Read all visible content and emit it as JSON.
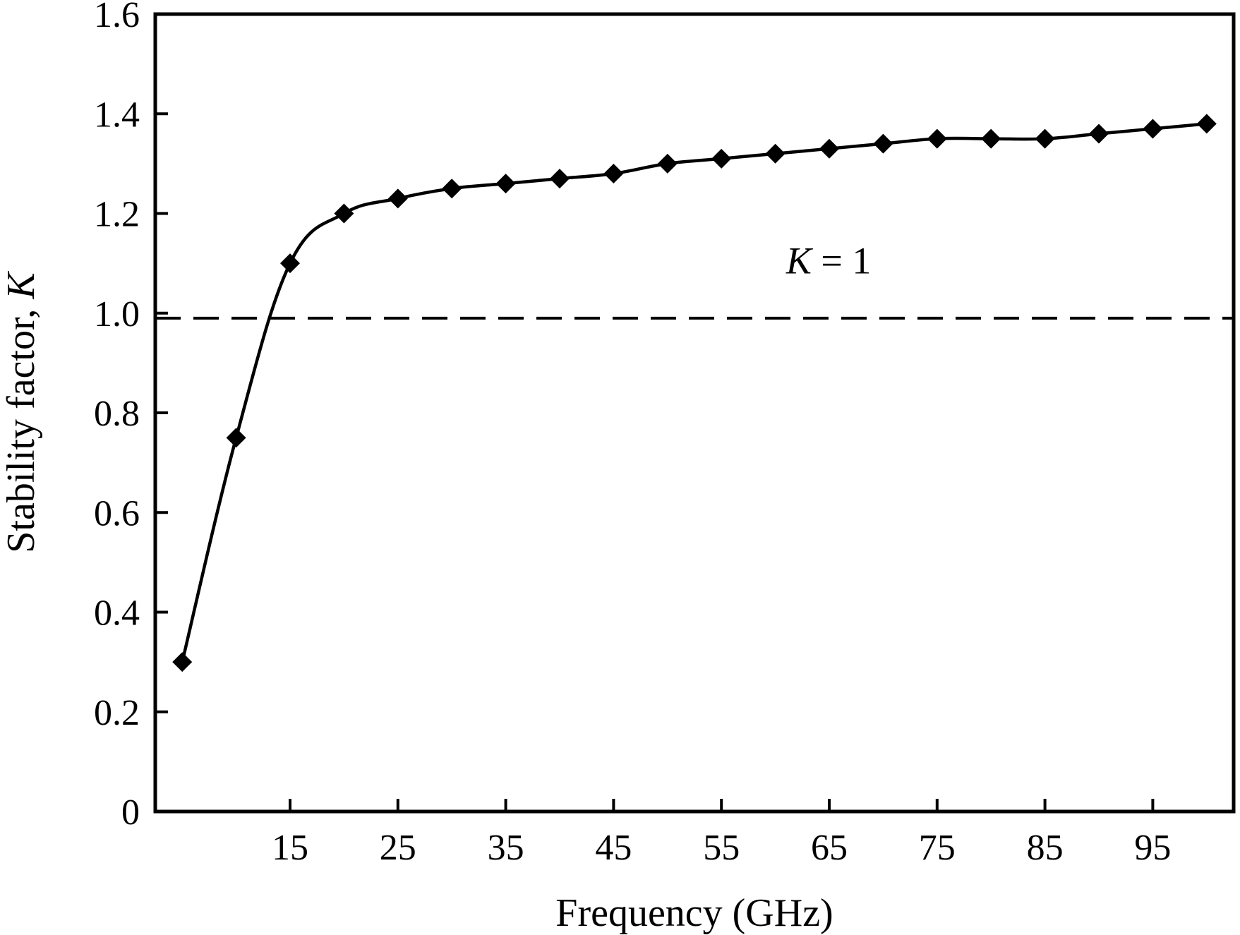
{
  "chart_data": {
    "type": "line",
    "title": "",
    "xlabel": "Frequency (GHz)",
    "ylabel_text": "Stability factor, ",
    "ylabel_var": "K",
    "xlim": [
      2.5,
      102.5
    ],
    "ylim": [
      0,
      1.6
    ],
    "x_ticks": [
      15,
      25,
      35,
      45,
      55,
      65,
      75,
      85,
      95
    ],
    "y_ticks": [
      0,
      0.2,
      0.4,
      0.6,
      0.8,
      1.0,
      1.2,
      1.4,
      1.6
    ],
    "y_tick_labels": [
      "0",
      "0.2",
      "0.4",
      "0.6",
      "0.8",
      "1.0",
      "1.2",
      "1.4",
      "1.6"
    ],
    "grid": false,
    "legend": "none",
    "series": [
      {
        "marker": "diamond",
        "color": "#000000",
        "x": [
          5,
          10,
          15,
          20,
          25,
          30,
          35,
          40,
          45,
          50,
          55,
          60,
          65,
          70,
          75,
          80,
          85,
          90,
          95,
          100
        ],
        "y": [
          0.3,
          0.75,
          1.1,
          1.2,
          1.23,
          1.25,
          1.26,
          1.27,
          1.28,
          1.3,
          1.31,
          1.32,
          1.33,
          1.34,
          1.35,
          1.35,
          1.35,
          1.36,
          1.37,
          1.38
        ]
      }
    ],
    "reference_line": {
      "y": 0.99,
      "style": "dashed",
      "label_var": "K",
      "label_rest": " = 1"
    }
  }
}
